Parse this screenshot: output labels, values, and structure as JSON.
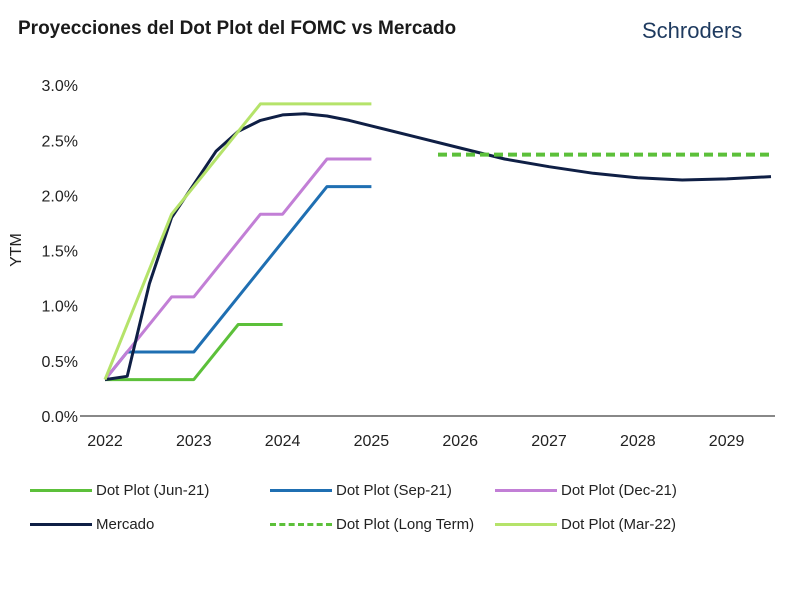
{
  "header": {
    "title": "Proyecciones del Dot Plot del FOMC vs Mercado",
    "brand": "Schroders"
  },
  "chart_data": {
    "type": "line",
    "title": "Proyecciones del Dot Plot del FOMC vs Mercado",
    "xlabel": "",
    "ylabel": "YTM",
    "xlim": [
      2022,
      2029.5
    ],
    "ylim": [
      0,
      3.0
    ],
    "xticks": [
      "2022",
      "2023",
      "2024",
      "2025",
      "2026",
      "2027",
      "2028",
      "2029"
    ],
    "yticks": [
      "0.0%",
      "0.5%",
      "1.0%",
      "1.5%",
      "2.0%",
      "2.5%",
      "3.0%"
    ],
    "legend_position": "bottom",
    "series": [
      {
        "name": "Dot Plot (Jun-21)",
        "color": "#5cc03a",
        "dash": false,
        "points": [
          [
            2022,
            0.33
          ],
          [
            2023,
            0.33
          ],
          [
            2023.5,
            0.83
          ],
          [
            2024,
            0.83
          ]
        ]
      },
      {
        "name": "Dot Plot (Sep-21)",
        "color": "#1f6fb2",
        "dash": false,
        "points": [
          [
            2022,
            0.33
          ],
          [
            2022.25,
            0.58
          ],
          [
            2023,
            0.58
          ],
          [
            2024.5,
            2.08
          ],
          [
            2025,
            2.08
          ]
        ]
      },
      {
        "name": "Dot Plot (Dec-21)",
        "color": "#c27fd6",
        "dash": false,
        "points": [
          [
            2022,
            0.33
          ],
          [
            2022.75,
            1.08
          ],
          [
            2023,
            1.08
          ],
          [
            2023.75,
            1.83
          ],
          [
            2024,
            1.83
          ],
          [
            2024.5,
            2.33
          ],
          [
            2025,
            2.33
          ]
        ]
      },
      {
        "name": "Mercado",
        "color": "#0f1f45",
        "dash": false,
        "points": [
          [
            2022,
            0.33
          ],
          [
            2022.25,
            0.36
          ],
          [
            2022.5,
            1.2
          ],
          [
            2022.75,
            1.8
          ],
          [
            2023,
            2.1
          ],
          [
            2023.25,
            2.4
          ],
          [
            2023.5,
            2.58
          ],
          [
            2023.75,
            2.68
          ],
          [
            2024,
            2.73
          ],
          [
            2024.25,
            2.74
          ],
          [
            2024.5,
            2.72
          ],
          [
            2024.75,
            2.68
          ],
          [
            2025,
            2.63
          ],
          [
            2025.5,
            2.53
          ],
          [
            2026,
            2.43
          ],
          [
            2026.5,
            2.33
          ],
          [
            2027,
            2.26
          ],
          [
            2027.5,
            2.2
          ],
          [
            2028,
            2.16
          ],
          [
            2028.5,
            2.14
          ],
          [
            2029,
            2.15
          ],
          [
            2029.5,
            2.17
          ]
        ]
      },
      {
        "name": "Dot Plot (Long Term)",
        "color": "#5cc03a",
        "dash": true,
        "points": [
          [
            2025.75,
            2.37
          ],
          [
            2029.5,
            2.37
          ]
        ]
      },
      {
        "name": "Dot Plot (Mar-22)",
        "color": "#b5e36a",
        "dash": false,
        "points": [
          [
            2022,
            0.33
          ],
          [
            2022.75,
            1.83
          ],
          [
            2023.75,
            2.83
          ],
          [
            2025,
            2.83
          ]
        ]
      }
    ]
  }
}
